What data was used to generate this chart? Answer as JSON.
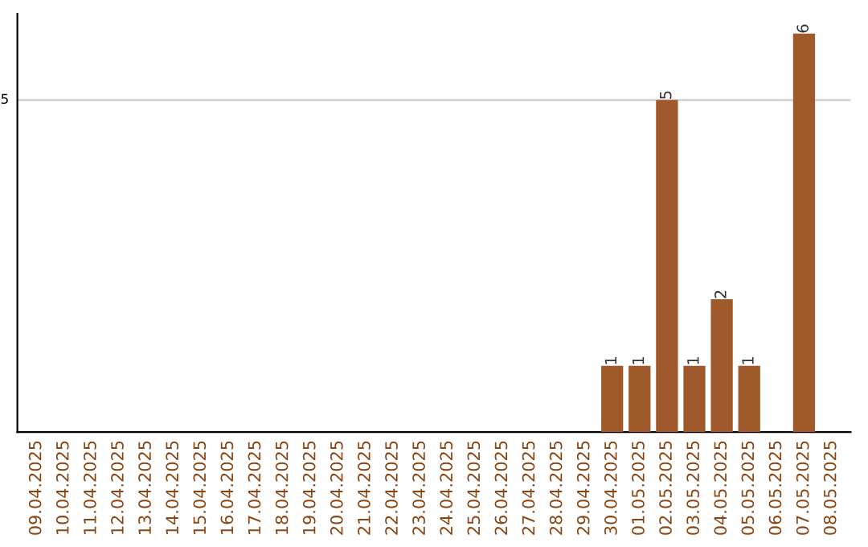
{
  "chart_data": {
    "type": "bar",
    "categories": [
      "09.04.2025",
      "10.04.2025",
      "11.04.2025",
      "12.04.2025",
      "13.04.2025",
      "14.04.2025",
      "15.04.2025",
      "16.04.2025",
      "17.04.2025",
      "18.04.2025",
      "19.04.2025",
      "20.04.2025",
      "21.04.2025",
      "22.04.2025",
      "23.04.2025",
      "24.04.2025",
      "25.04.2025",
      "26.04.2025",
      "27.04.2025",
      "28.04.2025",
      "29.04.2025",
      "30.04.2025",
      "01.05.2025",
      "02.05.2025",
      "03.05.2025",
      "04.05.2025",
      "05.05.2025",
      "06.05.2025",
      "07.05.2025",
      "08.05.2025"
    ],
    "values": [
      null,
      null,
      null,
      null,
      null,
      null,
      null,
      null,
      null,
      null,
      null,
      null,
      null,
      null,
      null,
      null,
      null,
      null,
      null,
      null,
      null,
      1,
      1,
      5,
      1,
      2,
      1,
      null,
      6,
      null
    ],
    "data_labels": true,
    "color": "#a0592a",
    "ref_lines": [
      {
        "axis": "y",
        "value": 5,
        "label": "5",
        "color": "#cccccc"
      }
    ]
  }
}
